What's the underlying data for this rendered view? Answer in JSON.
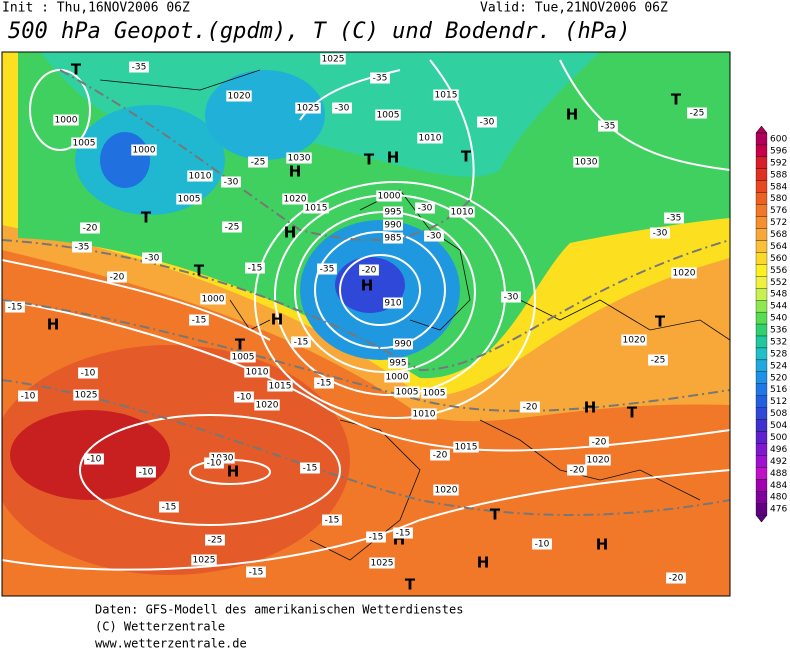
{
  "header": {
    "init": "Init : Thu,16NOV2006 06Z",
    "valid": "Valid: Tue,21NOV2006 06Z",
    "title": "500 hPa Geopot.(gpdm), T (C) und Bodendr. (hPa)"
  },
  "colorbar": {
    "levels": [
      600,
      596,
      592,
      588,
      584,
      580,
      576,
      572,
      568,
      564,
      560,
      556,
      552,
      548,
      544,
      540,
      536,
      532,
      528,
      524,
      520,
      516,
      512,
      508,
      504,
      500,
      496,
      492,
      488,
      484,
      480,
      476
    ],
    "colors": [
      "#b0005a",
      "#c8004a",
      "#d81e2a",
      "#e03020",
      "#e84820",
      "#ec6020",
      "#f07828",
      "#f49030",
      "#f8a838",
      "#fcc038",
      "#fcd828",
      "#fcf020",
      "#f0f040",
      "#c8f050",
      "#90e850",
      "#58dc50",
      "#30d070",
      "#20c8a0",
      "#20c0c8",
      "#20a8e0",
      "#2090e8",
      "#2078e8",
      "#2060e0",
      "#3048d8",
      "#4030d0",
      "#6020d0",
      "#8018d0",
      "#a010d0",
      "#c010c8",
      "#a000b0",
      "#80009a",
      "#600080"
    ]
  },
  "map_labels": [
    "T",
    "H",
    "T",
    "H",
    "H",
    "T",
    "T",
    "T",
    "T",
    "H",
    "H",
    "H",
    "T",
    "H",
    "T",
    "H",
    "T",
    "H",
    "T",
    "H",
    "H",
    "H",
    "T",
    "1025",
    "1020",
    "1025",
    "1005",
    "1010",
    "1015",
    "1000",
    "1005",
    "1000",
    "1030",
    "1010",
    "1005",
    "1020",
    "1015",
    "1000",
    "995",
    "990",
    "985",
    "910",
    "990",
    "995",
    "1000",
    "1005",
    "1005",
    "1010",
    "1010",
    "1030",
    "1000",
    "1005",
    "1010",
    "1015",
    "1020",
    "1025",
    "1030",
    "1015",
    "1020",
    "1020",
    "1020",
    "1025",
    "1025",
    "1020",
    "-25",
    "-35",
    "-35",
    "-30",
    "-30",
    "-25",
    "-25",
    "-30",
    "-35",
    "-20",
    "-20",
    "-15",
    "-15",
    "-15",
    "-15",
    "-15",
    "-10",
    "-10",
    "-10",
    "-10",
    "-10",
    "-10",
    "-15",
    "-15",
    "-15",
    "-15",
    "-15",
    "-15",
    "-10",
    "-20",
    "-20",
    "-20",
    "-20",
    "-20",
    "-25",
    "-30",
    "-35",
    "-35",
    "-25",
    "-30",
    "-30",
    "-30",
    "-35",
    "-20",
    "-30"
  ],
  "footer": [
    "Daten: GFS-Modell des amerikanischen Wetterdienstes",
    "(C) Wetterzentrale",
    "www.wetterzentrale.de"
  ]
}
